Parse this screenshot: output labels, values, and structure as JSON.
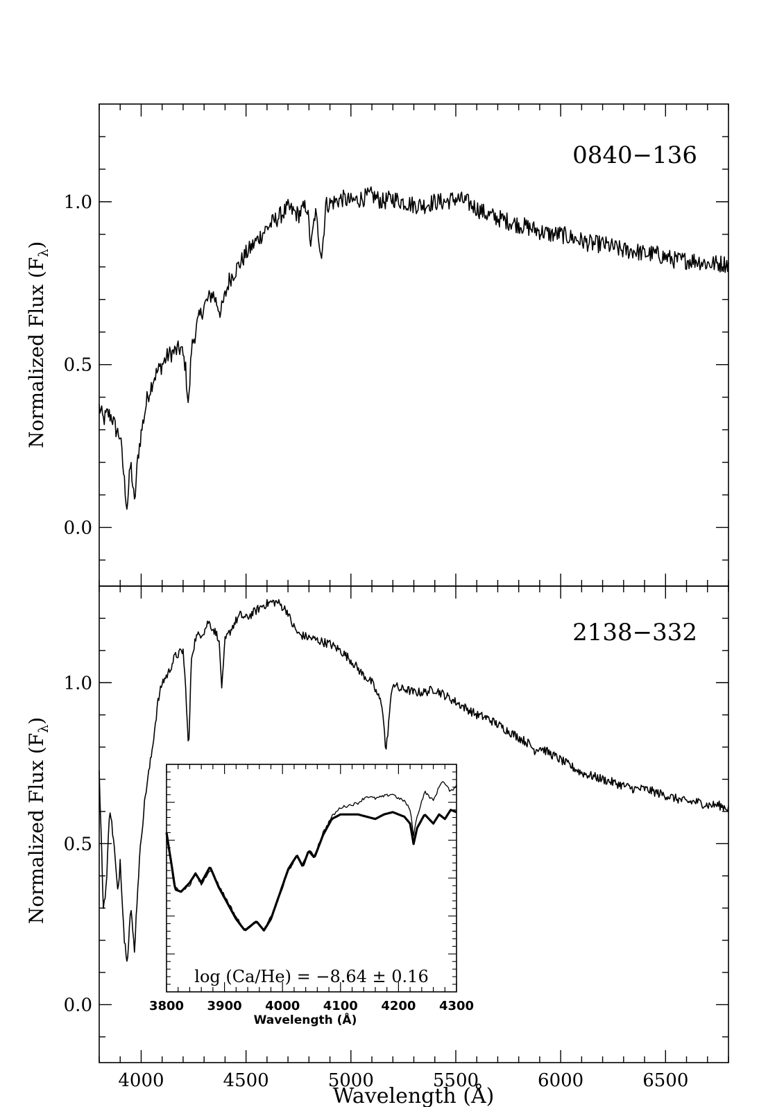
{
  "chart_data": [
    {
      "type": "line",
      "panel": "top",
      "annotation": "0840−136",
      "ylabel": "Normalized Flux (F",
      "ylabel_sub": "λ",
      "ylabel_close": ")",
      "xlim": [
        3800,
        6800
      ],
      "ylim": [
        -0.18,
        1.3
      ],
      "yticks": [
        0.0,
        0.5,
        1.0
      ],
      "ytick_labels": [
        "0.0",
        "0.5",
        "1.0"
      ],
      "series": [
        {
          "x": [
            3800,
            3820,
            3840,
            3860,
            3880,
            3900,
            3920,
            3933,
            3950,
            3968,
            3985,
            4000,
            4030,
            4060,
            4100,
            4130,
            4160,
            4190,
            4210,
            4226,
            4240,
            4270,
            4300,
            4340,
            4380,
            4420,
            4460,
            4500,
            4550,
            4600,
            4650,
            4700,
            4750,
            4790,
            4810,
            4830,
            4861,
            4880,
            4920,
            4960,
            5000,
            5050,
            5100,
            5150,
            5200,
            5250,
            5300,
            5350,
            5400,
            5450,
            5500,
            5550,
            5600,
            5650,
            5700,
            5750,
            5800,
            5850,
            5900,
            5950,
            6000,
            6050,
            6100,
            6150,
            6200,
            6250,
            6300,
            6350,
            6400,
            6450,
            6500,
            6550,
            6600,
            6650,
            6700,
            6750,
            6800
          ],
          "y": [
            0.37,
            0.33,
            0.35,
            0.34,
            0.3,
            0.28,
            0.14,
            0.06,
            0.2,
            0.07,
            0.22,
            0.29,
            0.4,
            0.46,
            0.5,
            0.53,
            0.54,
            0.55,
            0.5,
            0.37,
            0.55,
            0.63,
            0.68,
            0.72,
            0.66,
            0.76,
            0.8,
            0.84,
            0.88,
            0.92,
            0.95,
            0.98,
            0.96,
            0.99,
            0.86,
            0.97,
            0.83,
            0.99,
            1.0,
            1.01,
            1.0,
            1.01,
            1.02,
            1.0,
            1.01,
            1.0,
            0.99,
            0.99,
            1.0,
            1.0,
            1.01,
            1.0,
            0.98,
            0.96,
            0.95,
            0.94,
            0.93,
            0.92,
            0.91,
            0.9,
            0.9,
            0.89,
            0.88,
            0.87,
            0.87,
            0.86,
            0.85,
            0.85,
            0.84,
            0.84,
            0.83,
            0.82,
            0.82,
            0.82,
            0.81,
            0.81,
            0.81
          ]
        }
      ]
    },
    {
      "type": "line",
      "panel": "bottom",
      "annotation": "2138−332",
      "xlabel": "Wavelength (Å)",
      "ylabel": "Normalized Flux (F",
      "ylabel_sub": "λ",
      "ylabel_close": ")",
      "xlim": [
        3800,
        6800
      ],
      "ylim": [
        -0.18,
        1.3
      ],
      "xticks": [
        4000,
        4500,
        5000,
        5500,
        6000,
        6500
      ],
      "xtick_labels": [
        "4000",
        "4500",
        "5000",
        "5500",
        "6000",
        "6500"
      ],
      "yticks": [
        0.0,
        0.5,
        1.0
      ],
      "ytick_labels": [
        "0.0",
        "0.5",
        "1.0"
      ],
      "series": [
        {
          "x": [
            3800,
            3820,
            3835,
            3850,
            3870,
            3889,
            3900,
            3920,
            3934,
            3950,
            3968,
            3985,
            4000,
            4020,
            4050,
            4080,
            4100,
            4130,
            4160,
            4200,
            4215,
            4226,
            4240,
            4260,
            4300,
            4320,
            4340,
            4370,
            4385,
            4400,
            4440,
            4471,
            4500,
            4540,
            4580,
            4620,
            4650,
            4700,
            4713,
            4750,
            4800,
            4850,
            4900,
            4950,
            5000,
            5050,
            5100,
            5150,
            5167,
            5183,
            5200,
            5230,
            5260,
            5300,
            5350,
            5400,
            5450,
            5500,
            5550,
            5600,
            5650,
            5700,
            5750,
            5800,
            5850,
            5876,
            5900,
            5950,
            6000,
            6050,
            6100,
            6150,
            6200,
            6250,
            6300,
            6350,
            6400,
            6450,
            6500,
            6550,
            6600,
            6650,
            6700,
            6750,
            6800
          ],
          "y": [
            0.72,
            0.3,
            0.38,
            0.62,
            0.5,
            0.34,
            0.45,
            0.2,
            0.14,
            0.3,
            0.17,
            0.38,
            0.52,
            0.65,
            0.78,
            0.94,
            1.0,
            1.03,
            1.08,
            1.1,
            0.95,
            0.78,
            1.08,
            1.14,
            1.16,
            1.19,
            1.17,
            1.14,
            0.98,
            1.13,
            1.18,
            1.21,
            1.2,
            1.22,
            1.24,
            1.25,
            1.25,
            1.22,
            1.19,
            1.15,
            1.14,
            1.13,
            1.12,
            1.1,
            1.07,
            1.03,
            1.0,
            0.93,
            0.78,
            0.9,
            1.0,
            0.98,
            0.98,
            0.97,
            0.97,
            0.98,
            0.96,
            0.94,
            0.92,
            0.9,
            0.89,
            0.87,
            0.85,
            0.83,
            0.81,
            0.79,
            0.8,
            0.78,
            0.76,
            0.74,
            0.72,
            0.71,
            0.7,
            0.69,
            0.68,
            0.67,
            0.67,
            0.66,
            0.65,
            0.64,
            0.63,
            0.63,
            0.62,
            0.62,
            0.61
          ]
        }
      ]
    },
    {
      "type": "line",
      "panel": "inset",
      "xlabel": "Wavelength (Å)",
      "xlim": [
        3800,
        4300
      ],
      "ylim": [
        0.0,
        1.0
      ],
      "xticks": [
        3800,
        3900,
        4000,
        4100,
        4200,
        4300
      ],
      "xtick_labels": [
        "3800",
        "3900",
        "4000",
        "4100",
        "4200",
        "4300"
      ],
      "annotation": "log (Ca/He) = −8.64 ± 0.16",
      "series": [
        {
          "style": "thin",
          "x": [
            3800,
            3808,
            3815,
            3825,
            3840,
            3850,
            3860,
            3875,
            3890,
            3905,
            3920,
            3935,
            3945,
            3955,
            3968,
            3980,
            3995,
            4010,
            4025,
            4035,
            4045,
            4055,
            4070,
            4085,
            4100,
            4115,
            4130,
            4145,
            4160,
            4175,
            4190,
            4200,
            4210,
            4220,
            4226,
            4232,
            4245,
            4260,
            4275,
            4290,
            4300
          ],
          "y": [
            0.7,
            0.58,
            0.46,
            0.44,
            0.47,
            0.52,
            0.47,
            0.54,
            0.47,
            0.4,
            0.33,
            0.27,
            0.29,
            0.31,
            0.27,
            0.33,
            0.42,
            0.53,
            0.6,
            0.56,
            0.62,
            0.6,
            0.7,
            0.77,
            0.81,
            0.82,
            0.83,
            0.86,
            0.85,
            0.86,
            0.87,
            0.85,
            0.84,
            0.8,
            0.69,
            0.77,
            0.88,
            0.84,
            0.93,
            0.88,
            0.91
          ]
        },
        {
          "style": "thick",
          "x": [
            3800,
            3808,
            3815,
            3825,
            3840,
            3850,
            3860,
            3875,
            3890,
            3905,
            3920,
            3935,
            3945,
            3955,
            3968,
            3980,
            3995,
            4010,
            4025,
            4035,
            4045,
            4055,
            4070,
            4085,
            4100,
            4115,
            4130,
            4145,
            4160,
            4175,
            4190,
            4200,
            4210,
            4220,
            4226,
            4232,
            4245,
            4260,
            4270,
            4280,
            4290,
            4300
          ],
          "y": [
            0.7,
            0.57,
            0.45,
            0.44,
            0.48,
            0.52,
            0.48,
            0.55,
            0.46,
            0.39,
            0.32,
            0.27,
            0.29,
            0.31,
            0.27,
            0.32,
            0.43,
            0.54,
            0.6,
            0.55,
            0.62,
            0.59,
            0.69,
            0.76,
            0.78,
            0.78,
            0.78,
            0.77,
            0.76,
            0.78,
            0.79,
            0.78,
            0.77,
            0.74,
            0.65,
            0.72,
            0.78,
            0.74,
            0.78,
            0.76,
            0.8,
            0.79
          ]
        }
      ]
    }
  ]
}
